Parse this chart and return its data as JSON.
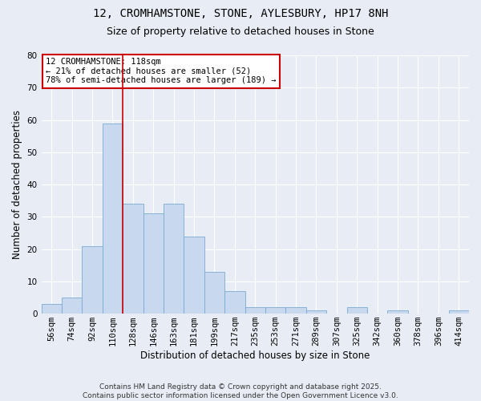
{
  "title_line1": "12, CROMHAMSTONE, STONE, AYLESBURY, HP17 8NH",
  "title_line2": "Size of property relative to detached houses in Stone",
  "xlabel": "Distribution of detached houses by size in Stone",
  "ylabel": "Number of detached properties",
  "bar_labels": [
    "56sqm",
    "74sqm",
    "92sqm",
    "110sqm",
    "128sqm",
    "146sqm",
    "163sqm",
    "181sqm",
    "199sqm",
    "217sqm",
    "235sqm",
    "253sqm",
    "271sqm",
    "289sqm",
    "307sqm",
    "325sqm",
    "342sqm",
    "360sqm",
    "378sqm",
    "396sqm",
    "414sqm"
  ],
  "bar_values": [
    3,
    5,
    21,
    59,
    34,
    31,
    34,
    24,
    13,
    7,
    2,
    2,
    2,
    1,
    0,
    2,
    0,
    1,
    0,
    0,
    1
  ],
  "bar_color": "#c8d9ef",
  "bar_edge_color": "#7aaad0",
  "background_color": "#e8edf5",
  "red_line_x": 3.5,
  "annotation_text": "12 CROMHAMSTONE: 118sqm\n← 21% of detached houses are smaller (52)\n78% of semi-detached houses are larger (189) →",
  "annotation_box_color": "#ffffff",
  "annotation_box_edge": "#cc0000",
  "ylim": [
    0,
    80
  ],
  "yticks": [
    0,
    10,
    20,
    30,
    40,
    50,
    60,
    70,
    80
  ],
  "footer_text": "Contains HM Land Registry data © Crown copyright and database right 2025.\nContains public sector information licensed under the Open Government Licence v3.0.",
  "title_fontsize": 10,
  "subtitle_fontsize": 9,
  "axis_label_fontsize": 8.5,
  "tick_fontsize": 7.5,
  "annotation_fontsize": 7.5
}
